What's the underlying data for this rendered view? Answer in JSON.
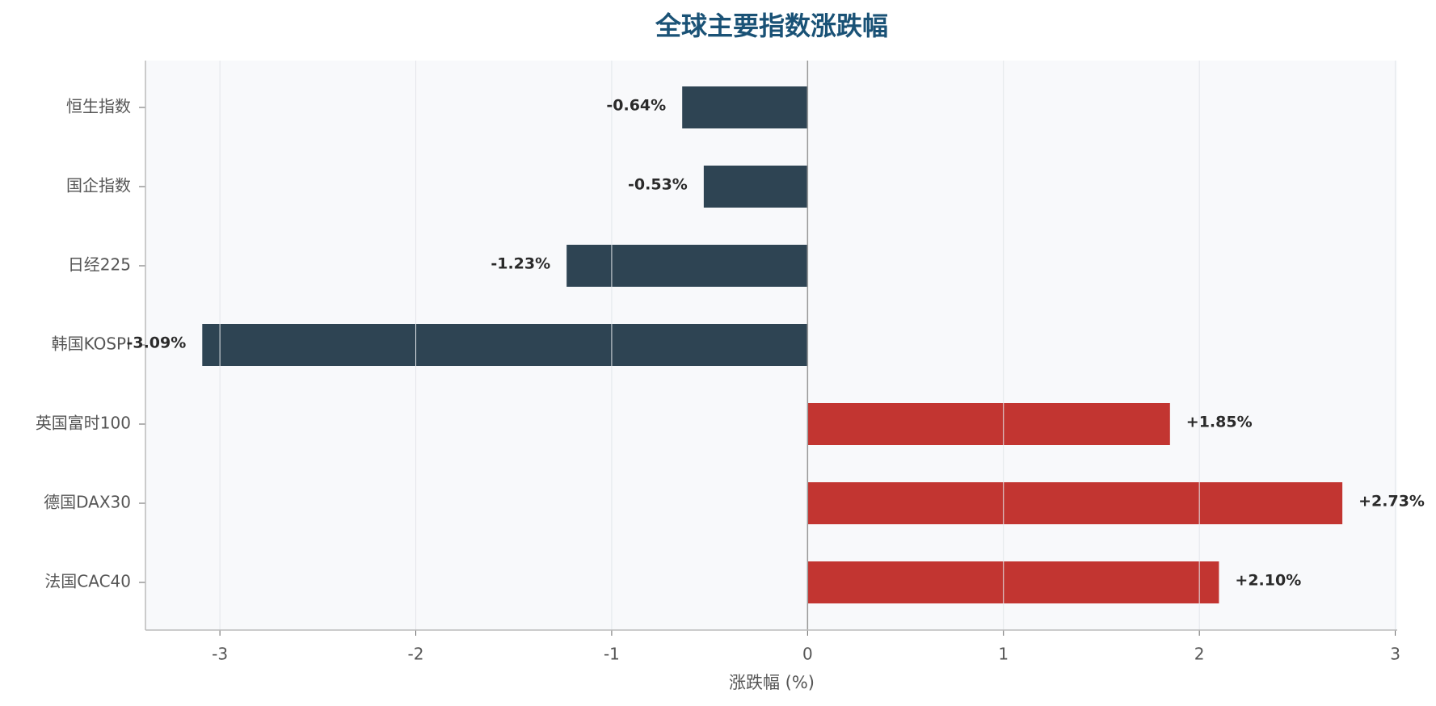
{
  "chart_data": {
    "type": "bar",
    "orientation": "horizontal",
    "title": "全球主要指数涨跌幅",
    "xlabel": "涨跌幅 (%)",
    "categories": [
      "恒生指数",
      "国企指数",
      "日经225",
      "韩国KOSPI",
      "英国富时100",
      "德国DAX30",
      "法国CAC40"
    ],
    "values": [
      -0.64,
      -0.53,
      -1.23,
      -3.09,
      1.85,
      2.73,
      2.1
    ],
    "value_labels": [
      "-0.64%",
      "-0.53%",
      "-1.23%",
      "-3.09%",
      "+1.85%",
      "+2.73%",
      "+2.10%"
    ],
    "colors": [
      "#2e4453",
      "#2e4453",
      "#2e4453",
      "#2e4453",
      "#c23531",
      "#c23531",
      "#c23531"
    ],
    "xlim": [
      -3.38,
      3.01
    ],
    "xticks": [
      -3,
      -2,
      -1,
      0,
      1,
      2,
      3
    ],
    "grid": true
  }
}
